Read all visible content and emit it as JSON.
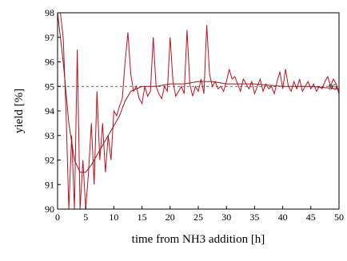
{
  "chart_data": {
    "type": "line",
    "xlabel": "time from NH3 addition [h]",
    "ylabel": "yield [%]",
    "xlim": [
      0,
      50
    ],
    "ylim": [
      90,
      98
    ],
    "xticks": [
      0,
      5,
      10,
      15,
      20,
      25,
      30,
      35,
      40,
      45,
      50
    ],
    "yticks": [
      90,
      91,
      92,
      93,
      94,
      95,
      96,
      97,
      98
    ],
    "reference_line": {
      "value": 95,
      "label": "95"
    },
    "series": [
      {
        "color": "#c0101c",
        "x": [
          0,
          0.5,
          1,
          1.5,
          2,
          2.5,
          3,
          3.5,
          4,
          4.5,
          5,
          5.5,
          6,
          6.5,
          7,
          7.5,
          8,
          8.5,
          9,
          9.5,
          10,
          10.5,
          11,
          11.5,
          12,
          12.5,
          13,
          13.5,
          14,
          14.5,
          15,
          15.5,
          16,
          16.5,
          17,
          17.5,
          18,
          18.5,
          19,
          19.5,
          20,
          20.5,
          21,
          21.5,
          22,
          22.5,
          23,
          23.5,
          24,
          24.5,
          25,
          25.5,
          26,
          26.5,
          27,
          27.5,
          28,
          28.5,
          29,
          29.5,
          30,
          30.5,
          31,
          31.5,
          32,
          32.5,
          33,
          33.5,
          34,
          34.5,
          35,
          35.5,
          36,
          36.5,
          37,
          37.5,
          38,
          38.5,
          39,
          39.5,
          40,
          40.5,
          41,
          41.5,
          42,
          42.5,
          43,
          43.5,
          44,
          44.5,
          45,
          45.5,
          46,
          46.5,
          47,
          47.5,
          48,
          48.5,
          49,
          49.5,
          50
        ],
        "values": [
          98,
          98,
          97,
          94,
          90,
          93,
          90,
          96.5,
          90,
          92,
          90,
          91.5,
          93.5,
          91,
          94.8,
          92,
          93.5,
          91.5,
          93,
          92,
          94,
          93.8,
          94.2,
          94.5,
          96,
          97.2,
          95.5,
          94.8,
          95,
          94.5,
          94.3,
          95,
          94.6,
          94.8,
          97,
          95,
          94.7,
          94.5,
          95,
          94.8,
          97,
          95.2,
          94.6,
          94.8,
          95,
          94.7,
          97.3,
          95.1,
          94.6,
          95,
          94.8,
          95.3,
          94.7,
          97.5,
          95.5,
          95,
          95.2,
          94.9,
          95,
          94.8,
          95.2,
          95.7,
          95.3,
          95.4,
          95.1,
          94.8,
          95.3,
          95.1,
          94.9,
          95.2,
          94.7,
          95,
          95.3,
          94.8,
          95.1,
          94.9,
          95,
          94.7,
          95.2,
          95.6,
          94.9,
          95.7,
          95,
          94.8,
          95.2,
          94.9,
          95.3,
          94.8,
          95,
          95.2,
          94.9,
          95.1,
          94.8,
          95,
          94.9,
          95.2,
          95.4,
          95,
          95.3,
          95.1,
          94.7
        ]
      },
      {
        "color": "#8b1a1a",
        "x": [
          0,
          1,
          2,
          3,
          4,
          5,
          6,
          7,
          8,
          9,
          10,
          11,
          12,
          13,
          14,
          15,
          17.5,
          20,
          22.5,
          25,
          27.5,
          30,
          35,
          40,
          45,
          50
        ],
        "values": [
          98,
          96,
          93.5,
          92,
          91.5,
          91.5,
          91.8,
          92.2,
          92.6,
          93,
          93.4,
          93.8,
          94.4,
          94.8,
          94.9,
          95,
          95,
          95.1,
          95.1,
          95.2,
          95.2,
          95.1,
          95.1,
          95,
          95,
          94.9
        ]
      }
    ]
  }
}
